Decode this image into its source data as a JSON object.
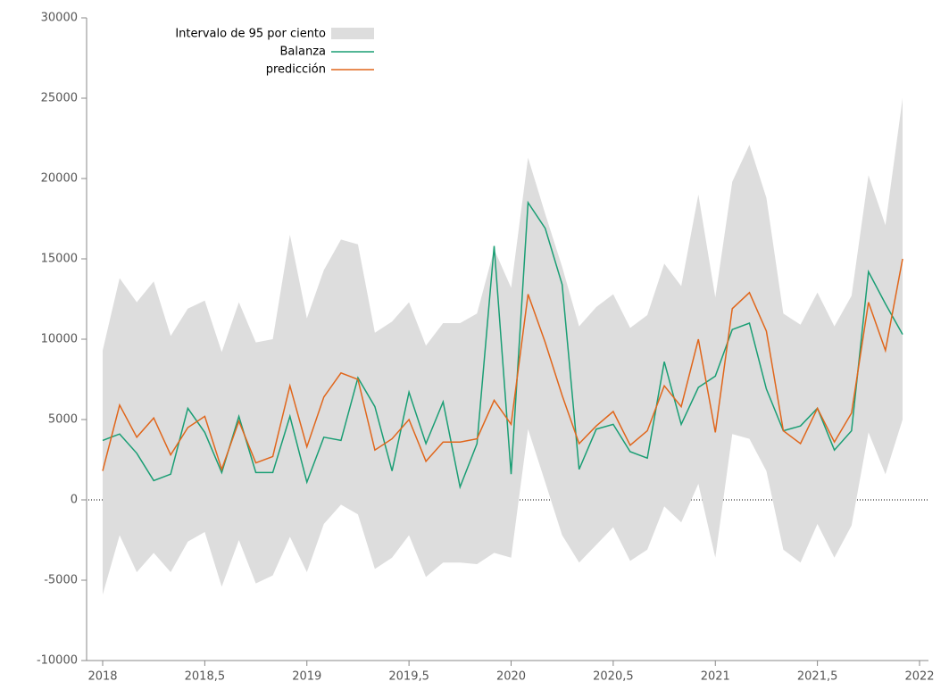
{
  "chart_data": {
    "type": "line",
    "x": [
      2018,
      2018.083,
      2018.167,
      2018.25,
      2018.333,
      2018.417,
      2018.5,
      2018.583,
      2018.667,
      2018.75,
      2018.833,
      2018.917,
      2019,
      2019.083,
      2019.167,
      2019.25,
      2019.333,
      2019.417,
      2019.5,
      2019.583,
      2019.667,
      2019.75,
      2019.833,
      2019.917,
      2020,
      2020.083,
      2020.167,
      2020.25,
      2020.333,
      2020.417,
      2020.5,
      2020.583,
      2020.667,
      2020.75,
      2020.833,
      2020.917,
      2021,
      2021.083,
      2021.167,
      2021.25,
      2021.333,
      2021.417,
      2021.5,
      2021.583,
      2021.667,
      2021.75,
      2021.833,
      2021.917
    ],
    "band": {
      "name": "Intervalo de 95 por ciento",
      "color": "#dddddd",
      "lower": [
        -5900,
        -2200,
        -4500,
        -3300,
        -4500,
        -2600,
        -2000,
        -5400,
        -2500,
        -5200,
        -4700,
        -2300,
        -4500,
        -1500,
        -300,
        -900,
        -4300,
        -3600,
        -2200,
        -4800,
        -3900,
        -3900,
        -4000,
        -3300,
        -3600,
        4400,
        1100,
        -2200,
        -3900,
        -2800,
        -1700,
        -3800,
        -3100,
        -400,
        -1400,
        1000,
        -3600,
        4100,
        3800,
        1800,
        -3100,
        -3900,
        -1500,
        -3600,
        -1600,
        4200,
        1600,
        5000
      ],
      "upper": [
        9300,
        13800,
        12300,
        13600,
        10200,
        11900,
        12400,
        9200,
        12300,
        9800,
        10000,
        16500,
        11300,
        14300,
        16200,
        15900,
        10400,
        11100,
        12300,
        9600,
        11000,
        11000,
        11600,
        15600,
        13200,
        21300,
        17800,
        14500,
        10800,
        12000,
        12800,
        10700,
        11500,
        14700,
        13300,
        19000,
        12600,
        19800,
        22100,
        18800,
        11600,
        10900,
        12900,
        10800,
        12700,
        20200,
        17100,
        25000
      ]
    },
    "series": [
      {
        "name": "Balanza",
        "color": "#1a9e74",
        "values": [
          3700,
          4100,
          2900,
          1200,
          1600,
          5700,
          4200,
          1700,
          5200,
          1700,
          1700,
          5200,
          1100,
          3900,
          3700,
          7600,
          5800,
          1800,
          6700,
          3500,
          6100,
          800,
          3500,
          15800,
          1600,
          18500,
          16900,
          13400,
          1900,
          4400,
          4700,
          3000,
          2600,
          8600,
          4700,
          7000,
          7700,
          10600,
          11000,
          6900,
          4300,
          4600,
          5700,
          3100,
          4300,
          14200,
          12200,
          10300
        ]
      },
      {
        "name": "predicción",
        "color": "#e0661b",
        "values": [
          1800,
          5900,
          3900,
          5100,
          2800,
          4500,
          5200,
          1900,
          4900,
          2300,
          2700,
          7100,
          3300,
          6400,
          7900,
          7500,
          3100,
          3800,
          5000,
          2400,
          3600,
          3600,
          3800,
          6200,
          4700,
          12800,
          9800,
          6500,
          3500,
          4600,
          5500,
          3400,
          4300,
          7100,
          5800,
          10000,
          4200,
          11900,
          12900,
          10500,
          4300,
          3500,
          5700,
          3600,
          5400,
          12300,
          9300,
          15000
        ]
      }
    ],
    "xlim": [
      2018,
      2022
    ],
    "xticks": [
      2018,
      {
        "value": 2018.5,
        "label": "2018,5"
      },
      2019,
      {
        "value": 2019.5,
        "label": "2019,5"
      },
      2020,
      {
        "value": 2020.5,
        "label": "2020,5"
      },
      2021,
      {
        "value": 2021.5,
        "label": "2021,5"
      },
      2022
    ],
    "ylim": [
      -10000,
      30000
    ],
    "yticks": [
      -10000,
      -5000,
      0,
      5000,
      10000,
      15000,
      20000,
      25000,
      30000
    ]
  }
}
